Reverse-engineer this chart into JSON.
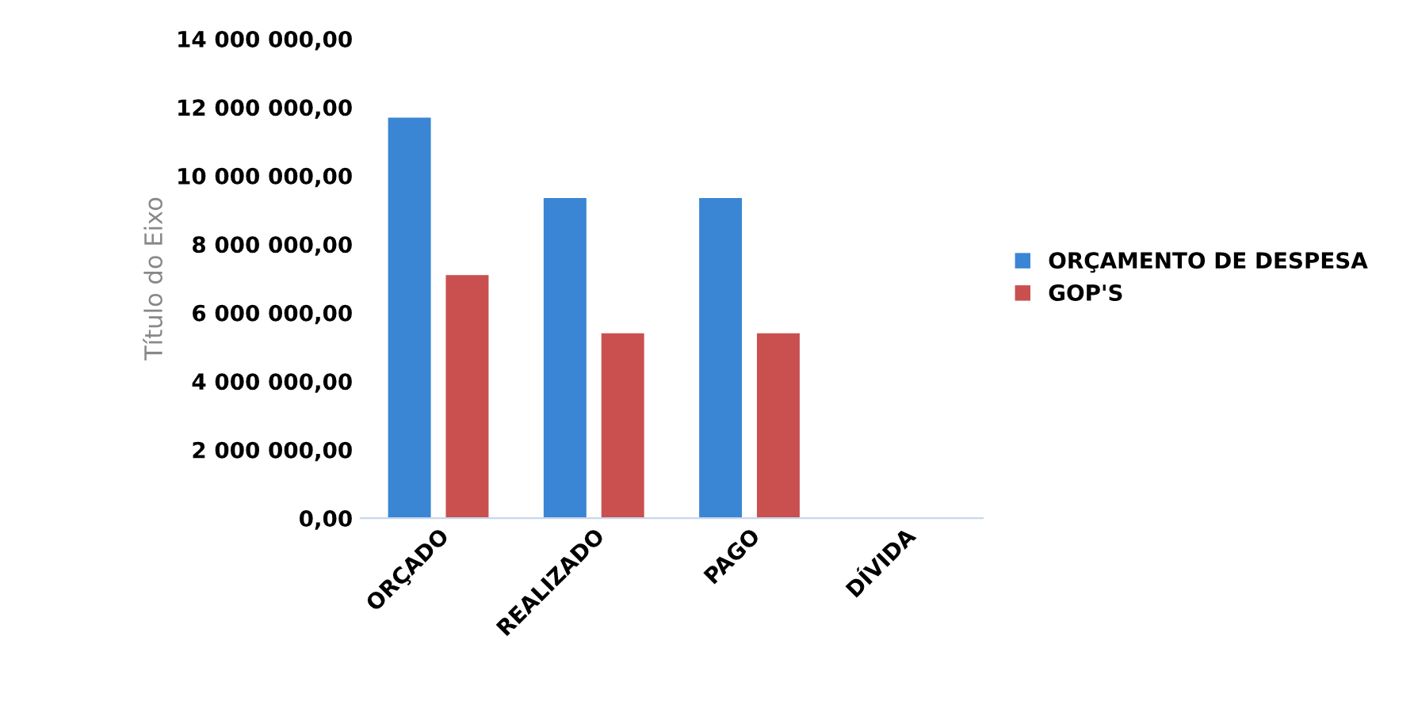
{
  "chart_data": {
    "type": "bar",
    "ylabel": "Título do Eixo",
    "categories": [
      "ORÇADO",
      "REALIZADO",
      "PAGO",
      "DÍVIDA"
    ],
    "series": [
      {
        "name": "ORÇAMENTO DE DESPESA",
        "color": "#3a86d4",
        "values": [
          11700000,
          9350000,
          9350000,
          null
        ]
      },
      {
        "name": "GOP'S",
        "color": "#c9504f",
        "values": [
          7100000,
          5400000,
          5400000,
          null
        ]
      }
    ],
    "ylim": [
      0,
      14000000
    ],
    "yticks": [
      {
        "value": 0,
        "label": "0,00"
      },
      {
        "value": 2000000,
        "label": "2 000 000,00"
      },
      {
        "value": 4000000,
        "label": "4 000 000,00"
      },
      {
        "value": 6000000,
        "label": "6 000 000,00"
      },
      {
        "value": 8000000,
        "label": "8 000 000,00"
      },
      {
        "value": 10000000,
        "label": "10 000 000,00"
      },
      {
        "value": 12000000,
        "label": "12 000 000,00"
      },
      {
        "value": 14000000,
        "label": "14 000 000,00"
      }
    ],
    "grid": false,
    "legend": "right"
  }
}
